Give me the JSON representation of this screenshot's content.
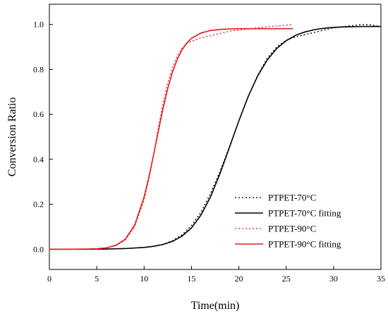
{
  "chart_data": {
    "type": "line",
    "title": "",
    "xlabel": "Time(min)",
    "ylabel": "Conversion Ratio",
    "xlim": [
      0,
      35
    ],
    "ylim": [
      -0.09,
      1.09
    ],
    "xticks": [
      0,
      5,
      10,
      15,
      20,
      25,
      30,
      35
    ],
    "yticks": [
      0.0,
      0.2,
      0.4,
      0.6,
      0.8,
      1.0
    ],
    "xtick_labels": [
      "0",
      "5",
      "10",
      "15",
      "20",
      "25",
      "30",
      "35"
    ],
    "ytick_labels": [
      "0.0",
      "0.2",
      "0.4",
      "0.6",
      "0.8",
      "1.0"
    ],
    "grid": false,
    "legend_position": "bottom-right",
    "series": [
      {
        "name": "PTPET-70°C",
        "color": "#000000",
        "style": "dotted",
        "x": [
          0,
          2,
          4,
          6,
          8,
          10,
          11,
          12,
          13,
          14,
          15,
          16,
          17,
          18,
          19,
          20,
          21,
          22,
          23,
          24,
          25,
          26,
          27,
          28,
          29,
          30,
          31,
          32,
          33,
          34,
          35
        ],
        "y": [
          0.0,
          0.0,
          0.0,
          0.0,
          0.003,
          0.008,
          0.013,
          0.022,
          0.038,
          0.064,
          0.105,
          0.165,
          0.247,
          0.345,
          0.455,
          0.57,
          0.68,
          0.775,
          0.85,
          0.9,
          0.93,
          0.945,
          0.955,
          0.965,
          0.975,
          0.985,
          0.99,
          0.995,
          1.0,
          0.998,
          0.99
        ]
      },
      {
        "name": "PTPET-70°C fitting",
        "color": "#000000",
        "style": "solid",
        "x": [
          0,
          2,
          4,
          6,
          8,
          10,
          11,
          12,
          13,
          14,
          15,
          16,
          17,
          18,
          19,
          20,
          21,
          22,
          23,
          24,
          25,
          26,
          27,
          28,
          29,
          30,
          31,
          32,
          33,
          34,
          35
        ],
        "y": [
          0.0,
          0.0,
          0.0,
          0.001,
          0.003,
          0.008,
          0.013,
          0.021,
          0.035,
          0.058,
          0.095,
          0.152,
          0.232,
          0.335,
          0.452,
          0.571,
          0.681,
          0.772,
          0.842,
          0.893,
          0.928,
          0.952,
          0.967,
          0.977,
          0.983,
          0.987,
          0.989,
          0.99,
          0.991,
          0.991,
          0.991
        ]
      },
      {
        "name": "PTPET-90°C",
        "color": "#e41a1c",
        "style": "dotted",
        "x": [
          0,
          2,
          4,
          5,
          6,
          7,
          8,
          9,
          10,
          10.5,
          11,
          11.5,
          12,
          12.5,
          13,
          13.5,
          14,
          14.5,
          15,
          16,
          17,
          18,
          19,
          20,
          21,
          22,
          23,
          24,
          25,
          25.7
        ],
        "y": [
          0.0,
          0.0,
          0.0,
          0.002,
          0.006,
          0.015,
          0.04,
          0.1,
          0.22,
          0.31,
          0.42,
          0.54,
          0.65,
          0.74,
          0.81,
          0.86,
          0.895,
          0.915,
          0.925,
          0.94,
          0.95,
          0.96,
          0.97,
          0.975,
          0.98,
          0.985,
          0.99,
          0.993,
          0.997,
          1.0
        ]
      },
      {
        "name": "PTPET-90°C fitting",
        "color": "#e41a1c",
        "style": "solid",
        "x": [
          0,
          2,
          4,
          5,
          6,
          7,
          8,
          9,
          10,
          10.5,
          11,
          11.5,
          12,
          12.5,
          13,
          13.5,
          14,
          14.5,
          15,
          16,
          17,
          18,
          19,
          20,
          21,
          22,
          23,
          24,
          25,
          25.7
        ],
        "y": [
          0.0,
          0.0,
          0.001,
          0.002,
          0.006,
          0.017,
          0.044,
          0.107,
          0.233,
          0.32,
          0.42,
          0.525,
          0.627,
          0.716,
          0.789,
          0.845,
          0.887,
          0.917,
          0.938,
          0.962,
          0.973,
          0.978,
          0.98,
          0.981,
          0.981,
          0.981,
          0.981,
          0.981,
          0.981,
          0.981
        ]
      }
    ]
  }
}
